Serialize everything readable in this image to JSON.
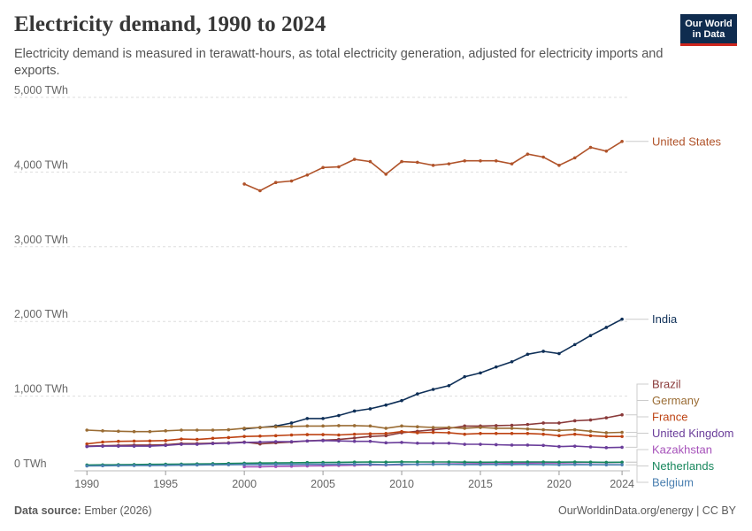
{
  "header": {
    "title": "Electricity demand, 1990 to 2024",
    "subtitle": "Electricity demand is measured in terawatt-hours, as total electricity generation, adjusted for electricity imports and exports.",
    "logo_line1": "Our World",
    "logo_line2": "in Data"
  },
  "footer": {
    "source_label": "Data source:",
    "source_value": "Ember (2026)",
    "right": "OurWorldinData.org/energy | CC BY"
  },
  "chart_data": {
    "type": "line",
    "title": "Electricity demand, 1990 to 2024",
    "xlabel": "",
    "ylabel": "",
    "xlim": [
      1989.2,
      2024.5
    ],
    "ylim": [
      0,
      5000
    ],
    "x_ticks": [
      1990,
      1995,
      2000,
      2005,
      2010,
      2015,
      2020,
      2024
    ],
    "y_ticks": [
      {
        "value": 0,
        "label": "0 TWh"
      },
      {
        "value": 1000,
        "label": "1,000 TWh"
      },
      {
        "value": 2000,
        "label": "2,000 TWh"
      },
      {
        "value": 3000,
        "label": "3,000 TWh"
      },
      {
        "value": 4000,
        "label": "4,000 TWh"
      },
      {
        "value": 5000,
        "label": "5,000 TWh"
      }
    ],
    "grid": true,
    "series": [
      {
        "name": "United States",
        "color": "#b0532a",
        "start": 2000,
        "values": [
          3840,
          3750,
          3860,
          3880,
          3960,
          4060,
          4070,
          4170,
          4140,
          3970,
          4140,
          4130,
          4090,
          4110,
          4150,
          4150,
          4150,
          4110,
          4240,
          4200,
          4090,
          4190,
          4330,
          4280,
          4410
        ]
      },
      {
        "name": "India",
        "color": "#0e2f57",
        "start": 2000,
        "values": [
          560,
          580,
          600,
          640,
          700,
          700,
          740,
          800,
          830,
          880,
          940,
          1030,
          1090,
          1140,
          1260,
          1310,
          1390,
          1460,
          1560,
          1600,
          1570,
          1690,
          1810,
          1920,
          2030
        ]
      },
      {
        "name": "Brazil",
        "color": "#8a3a3a",
        "start": 1990,
        "values": [
          330,
          335,
          340,
          345,
          345,
          350,
          365,
          365,
          370,
          375,
          385,
          360,
          375,
          385,
          400,
          410,
          420,
          440,
          460,
          470,
          510,
          530,
          550,
          570,
          600,
          600,
          605,
          610,
          620,
          640,
          640,
          670,
          680,
          710,
          750
        ]
      },
      {
        "name": "Germany",
        "color": "#9a6c34",
        "start": 1990,
        "values": [
          545,
          535,
          530,
          525,
          525,
          535,
          545,
          545,
          545,
          550,
          570,
          580,
          590,
          595,
          600,
          600,
          605,
          605,
          600,
          570,
          600,
          590,
          580,
          580,
          570,
          580,
          570,
          570,
          560,
          550,
          540,
          550,
          530,
          510,
          515
        ]
      },
      {
        "name": "France",
        "color": "#bd4212",
        "start": 1990,
        "values": [
          360,
          385,
          395,
          398,
          400,
          405,
          425,
          420,
          435,
          445,
          460,
          465,
          470,
          480,
          485,
          485,
          480,
          490,
          495,
          500,
          525,
          510,
          515,
          510,
          490,
          500,
          500,
          500,
          500,
          490,
          470,
          490,
          470,
          460,
          460
        ]
      },
      {
        "name": "United Kingdom",
        "color": "#6a3d9a",
        "start": 1990,
        "values": [
          325,
          330,
          330,
          330,
          330,
          340,
          355,
          355,
          365,
          370,
          380,
          385,
          390,
          390,
          400,
          405,
          400,
          395,
          395,
          375,
          380,
          370,
          370,
          370,
          355,
          355,
          350,
          345,
          345,
          340,
          325,
          330,
          320,
          310,
          315
        ]
      },
      {
        "name": "Kazakhstan",
        "color": "#a652ba",
        "start": 2000,
        "values": [
          55,
          55,
          58,
          62,
          65,
          68,
          72,
          76,
          80,
          78,
          82,
          86,
          90,
          92,
          94,
          96,
          95,
          100,
          104,
          105,
          106,
          110,
          112,
          110,
          115
        ]
      },
      {
        "name": "Netherlands",
        "color": "#18875d",
        "start": 1990,
        "values": [
          78,
          80,
          82,
          84,
          86,
          88,
          90,
          92,
          95,
          98,
          102,
          104,
          105,
          108,
          110,
          112,
          114,
          116,
          118,
          116,
          120,
          119,
          118,
          118,
          116,
          115,
          116,
          117,
          118,
          118,
          116,
          118,
          116,
          114,
          115
        ]
      },
      {
        "name": "Belgium",
        "color": "#4a7fb0",
        "start": 1990,
        "values": [
          65,
          68,
          70,
          71,
          72,
          74,
          76,
          78,
          80,
          82,
          84,
          84,
          86,
          86,
          88,
          88,
          89,
          89,
          88,
          83,
          88,
          87,
          87,
          86,
          84,
          83,
          85,
          84,
          85,
          84,
          80,
          84,
          82,
          80,
          81
        ]
      }
    ],
    "label_order": [
      "United States",
      "India",
      "Brazil",
      "Germany",
      "France",
      "United Kingdom",
      "Kazakhstan",
      "Netherlands",
      "Belgium"
    ]
  }
}
